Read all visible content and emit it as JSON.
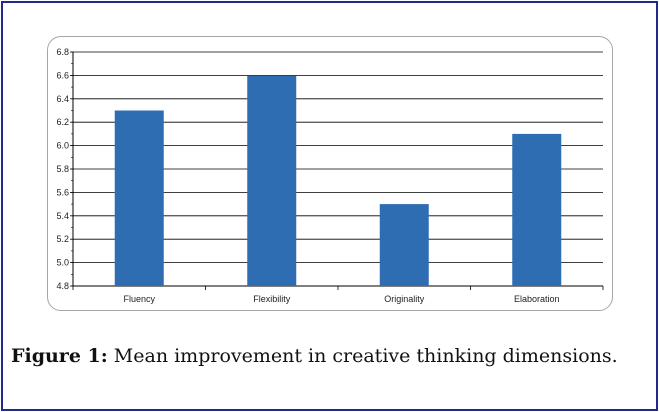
{
  "colors": {
    "frame": "#1f2a8a",
    "bar": "#2f6db3",
    "grid": "#000000",
    "chart_border": "#a6a6a6"
  },
  "caption": {
    "label": "Figure 1:",
    "text": " Mean improvement in creative thinking dimensions."
  },
  "chart_data": {
    "type": "bar",
    "categories": [
      "Fluency",
      "Flexibility",
      "Originality",
      "Elaboration"
    ],
    "values": [
      6.3,
      6.6,
      5.5,
      6.1
    ],
    "title": "",
    "xlabel": "",
    "ylabel": "",
    "ylim": [
      4.8,
      6.8
    ],
    "yticks": [
      "4.8",
      "5.0",
      "5.2",
      "5.4",
      "5.6",
      "5.8",
      "6.0",
      "6.2",
      "6.4",
      "6.6",
      "6.8"
    ],
    "grid": true,
    "legend": "none"
  }
}
